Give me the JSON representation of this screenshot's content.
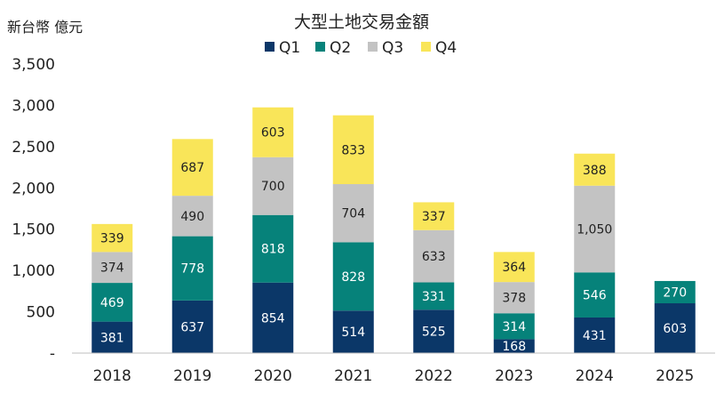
{
  "chart_data": {
    "type": "bar",
    "stacked": true,
    "title": "大型土地交易金額",
    "unit_label": "新台幣 億元",
    "categories": [
      "2018",
      "2019",
      "2020",
      "2021",
      "2022",
      "2023",
      "2024",
      "2025"
    ],
    "series": [
      {
        "name": "Q1",
        "color": "#0b3768",
        "label_color": "#ffffff",
        "values": [
          381,
          637,
          854,
          514,
          525,
          168,
          431,
          603
        ]
      },
      {
        "name": "Q2",
        "color": "#06827a",
        "label_color": "#ffffff",
        "values": [
          469,
          778,
          818,
          828,
          331,
          314,
          546,
          270
        ]
      },
      {
        "name": "Q3",
        "color": "#c3c3c3",
        "label_color": "#222222",
        "values": [
          374,
          490,
          700,
          704,
          633,
          378,
          1050,
          null
        ]
      },
      {
        "name": "Q4",
        "color": "#f9e559",
        "label_color": "#222222",
        "values": [
          339,
          687,
          603,
          833,
          337,
          364,
          388,
          null
        ]
      }
    ],
    "data_labels": [
      [
        "381",
        "637",
        "854",
        "514",
        "525",
        "168",
        "431",
        "603"
      ],
      [
        "469",
        "778",
        "818",
        "828",
        "331",
        "314",
        "546",
        "270"
      ],
      [
        "374",
        "490",
        "700",
        "704",
        "633",
        "378",
        "1,050",
        ""
      ],
      [
        "339",
        "687",
        "603",
        "833",
        "337",
        "364",
        "388",
        ""
      ]
    ],
    "ylim": [
      0,
      3500
    ],
    "yticks": [
      0,
      500,
      1000,
      1500,
      2000,
      2500,
      3000,
      3500
    ],
    "ytick_labels": [
      "-",
      "500",
      "1,000",
      "1,500",
      "2,000",
      "2,500",
      "3,000",
      "3,500"
    ],
    "legend_position": "top-center",
    "grid": false
  }
}
